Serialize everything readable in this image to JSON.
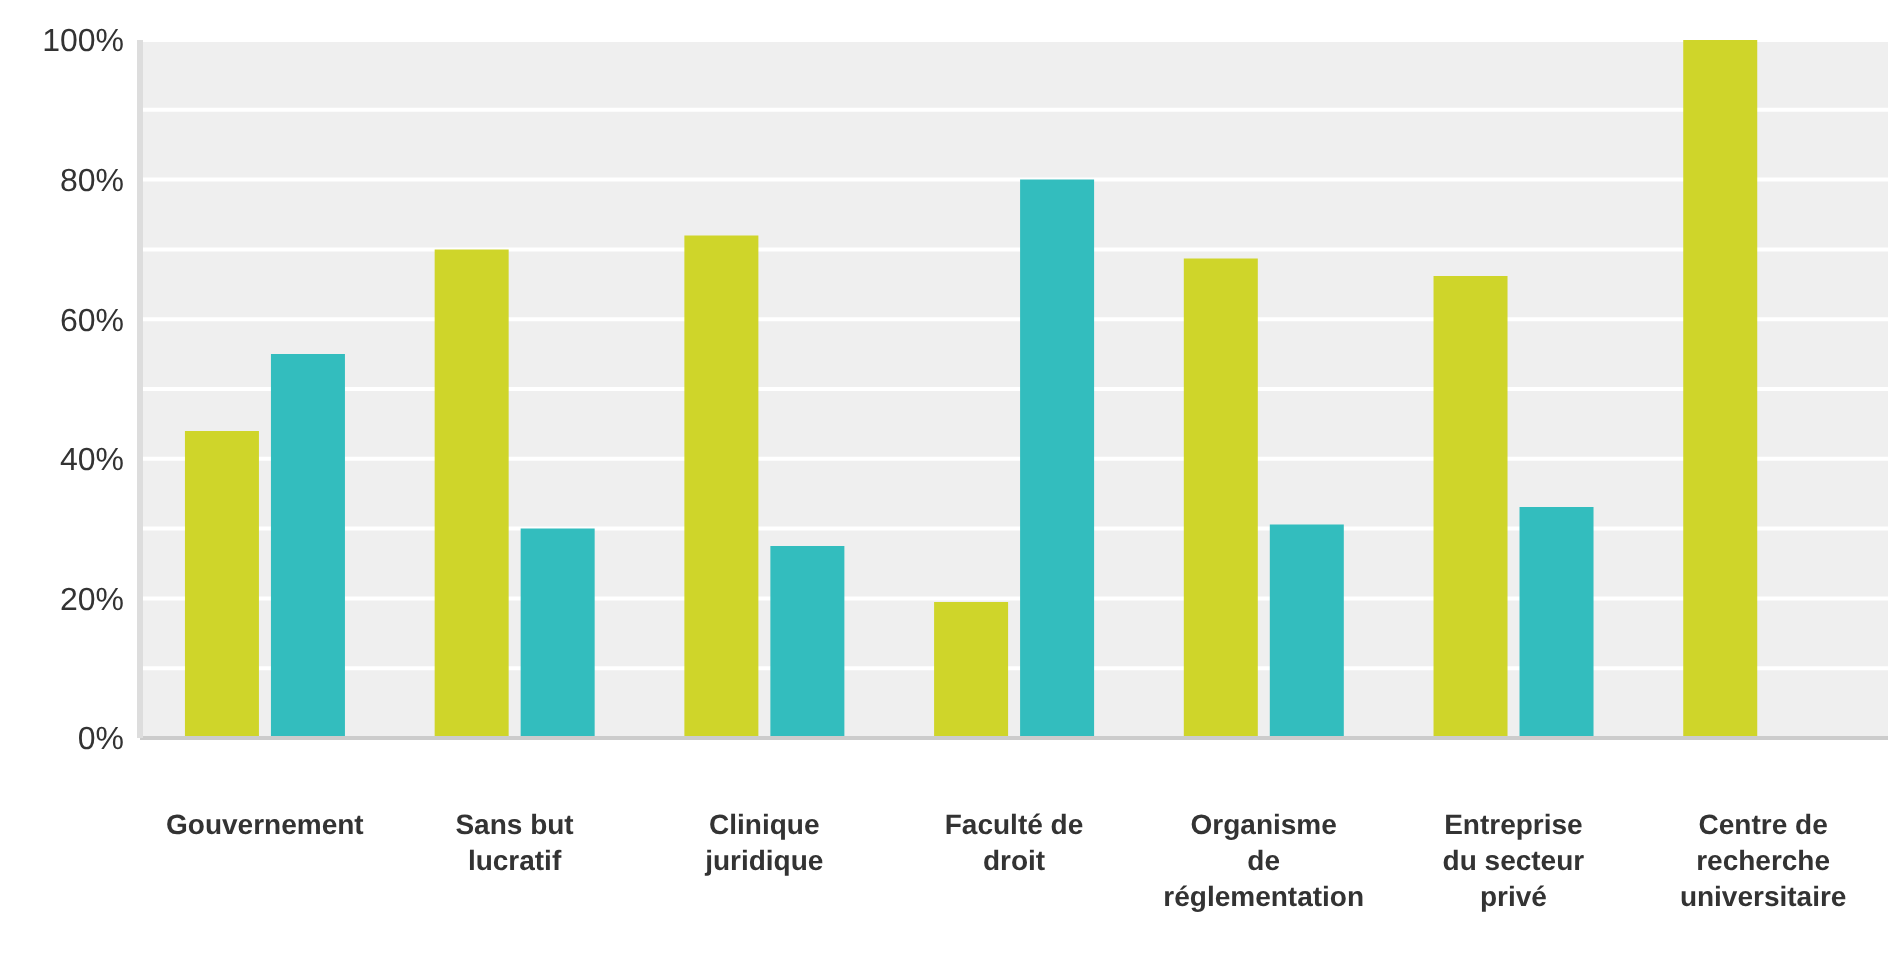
{
  "chart_data": {
    "type": "bar",
    "categories": [
      "Gouvernement",
      "Sans but lucratif",
      "Clinique juridique",
      "Faculté de droit",
      "Organisme de réglementation",
      "Entreprise du secteur privé",
      "Centre de recherche universitaire"
    ],
    "series": [
      {
        "color": "#cfd52a",
        "values": [
          44,
          70,
          72,
          19.5,
          68.7,
          66.2,
          100
        ]
      },
      {
        "color": "#33bdbe",
        "values": [
          55,
          30,
          27.5,
          80,
          30.6,
          33.1,
          null
        ]
      }
    ],
    "ylim": [
      0,
      100
    ],
    "yticks": [
      {
        "value": 0,
        "label": "0%"
      },
      {
        "value": 10,
        "label": null
      },
      {
        "value": 20,
        "label": "20%"
      },
      {
        "value": 30,
        "label": null
      },
      {
        "value": 40,
        "label": "40%"
      },
      {
        "value": 50,
        "label": null
      },
      {
        "value": 60,
        "label": "60%"
      },
      {
        "value": 70,
        "label": null
      },
      {
        "value": 80,
        "label": "80%"
      },
      {
        "value": 90,
        "label": null
      },
      {
        "value": 100,
        "label": "100%"
      }
    ],
    "grid": "y",
    "legend": false
  }
}
